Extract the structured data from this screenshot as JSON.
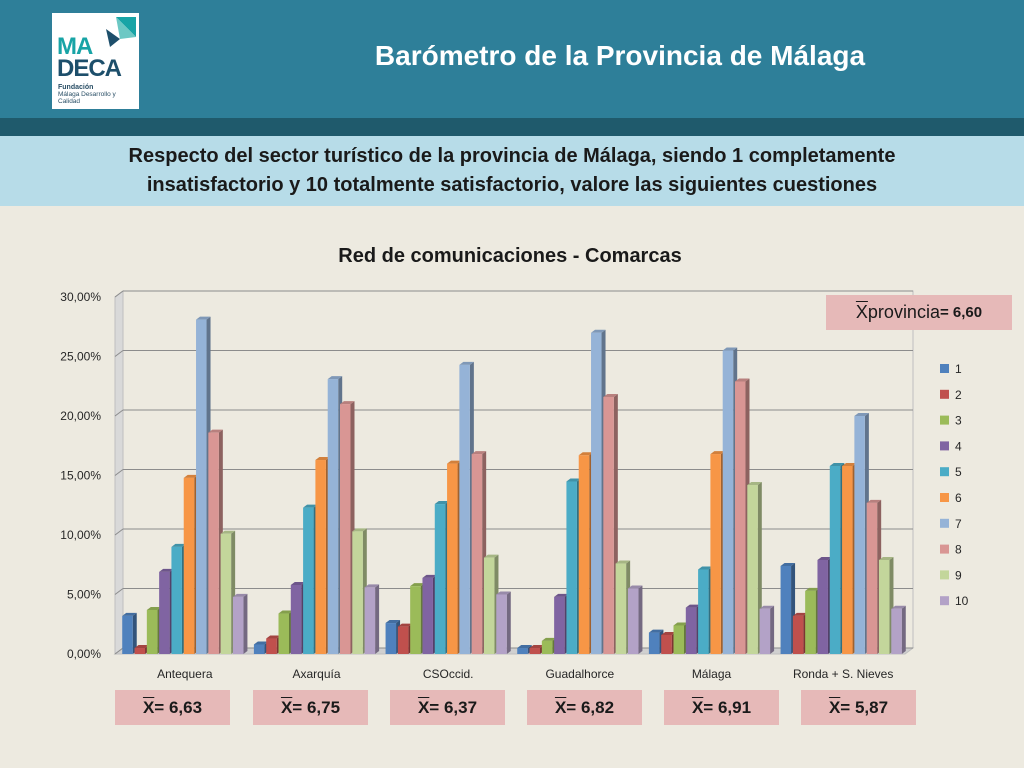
{
  "logo": {
    "line1": "MA",
    "line2": "DECA",
    "org_bold": "Fundación",
    "org_rest": "Málaga Desarrollo y Calidad"
  },
  "header": {
    "title": "Barómetro de la Provincia de Málaga"
  },
  "question": {
    "line1": "Respecto del sector turístico de la provincia de Málaga, siendo 1 completamente",
    "line2": "insatisfactorio y 10 totalmente satisfactorio, valore las siguientes cuestiones"
  },
  "province_mean": {
    "symbol": "X",
    "label": " provincia",
    "value": "= 6,60"
  },
  "colors": [
    "#4f81bd",
    "#c0504d",
    "#9bbb59",
    "#8064a2",
    "#4bacc6",
    "#f79646",
    "#95b3d7",
    "#d99694",
    "#c3d69b",
    "#b3a2c7"
  ],
  "chart_data": {
    "type": "bar",
    "title": "Red de comunicaciones - Comarcas",
    "categories": [
      "Antequera",
      "Axarquía",
      "CSOccid.",
      "Guadalhorce",
      "Málaga",
      "Ronda + S. Nieves"
    ],
    "ylim": [
      0,
      30
    ],
    "yticks": [
      "0,00%",
      "5,00%",
      "10,00%",
      "15,00%",
      "20,00%",
      "25,00%",
      "30,00%"
    ],
    "grid": true,
    "legend_position": "right",
    "series": [
      {
        "name": "1",
        "values": [
          3.2,
          0.8,
          2.6,
          0.5,
          1.8,
          7.4
        ]
      },
      {
        "name": "2",
        "values": [
          0.5,
          1.3,
          2.3,
          0.5,
          1.6,
          3.2
        ]
      },
      {
        "name": "3",
        "values": [
          3.7,
          3.4,
          5.7,
          1.1,
          2.4,
          5.3
        ]
      },
      {
        "name": "4",
        "values": [
          6.9,
          5.8,
          6.4,
          4.8,
          3.9,
          7.9
        ]
      },
      {
        "name": "5",
        "values": [
          9.0,
          12.3,
          12.6,
          14.5,
          7.1,
          15.8
        ]
      },
      {
        "name": "6",
        "values": [
          14.8,
          16.3,
          16.0,
          16.7,
          16.8,
          15.8
        ]
      },
      {
        "name": "7",
        "values": [
          28.1,
          23.1,
          24.3,
          27.0,
          25.5,
          20.0
        ]
      },
      {
        "name": "8",
        "values": [
          18.6,
          21.0,
          16.8,
          21.6,
          22.9,
          12.7
        ]
      },
      {
        "name": "9",
        "values": [
          10.1,
          10.3,
          8.1,
          7.6,
          14.2,
          7.9
        ]
      },
      {
        "name": "10",
        "values": [
          4.8,
          5.6,
          5.0,
          5.5,
          3.8,
          3.8
        ]
      }
    ]
  },
  "means": [
    {
      "symbol": "X",
      "value": "= 6,63"
    },
    {
      "symbol": "X",
      "value": "= 6,75"
    },
    {
      "symbol": "X",
      "value": "= 6,37"
    },
    {
      "symbol": "X",
      "value": "= 6,82"
    },
    {
      "symbol": "X",
      "value": "= 6,91"
    },
    {
      "symbol": "X",
      "value": "= 5,87"
    }
  ]
}
